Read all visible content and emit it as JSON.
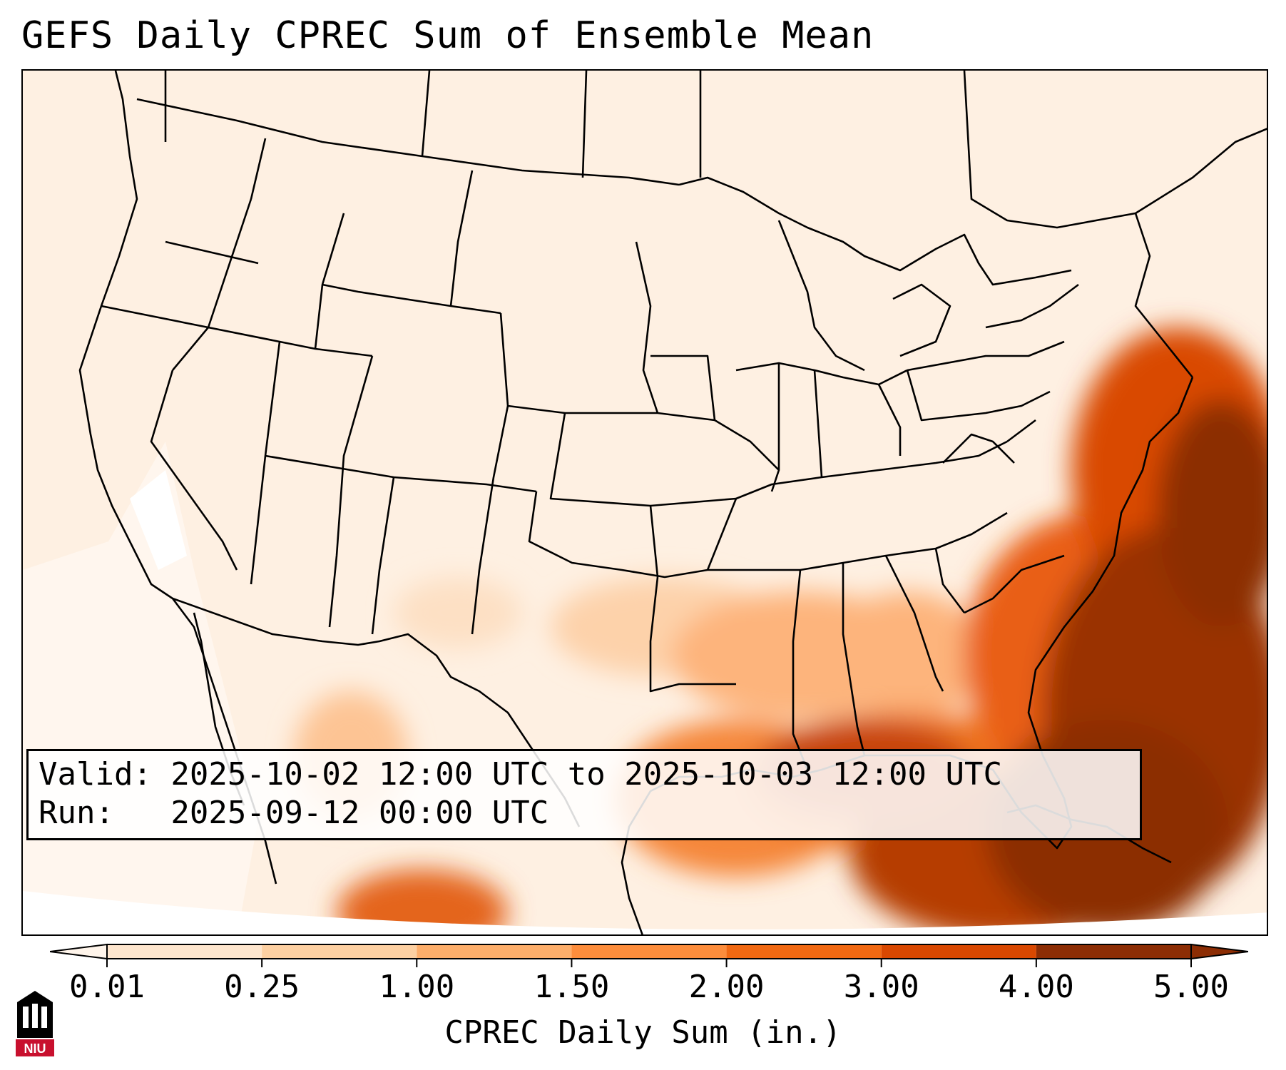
{
  "title": "GEFS Daily CPREC Sum of Ensemble Mean",
  "info": {
    "valid_line": "Valid: 2025-10-02 12:00 UTC to 2025-10-03 12:00 UTC",
    "run_line": "Run:   2025-09-12 00:00 UTC"
  },
  "colorbar": {
    "label": "CPREC Daily Sum (in.)",
    "ticks": [
      "0.01",
      "0.25",
      "1.00",
      "1.50",
      "2.00",
      "3.00",
      "4.00",
      "5.00"
    ],
    "colors": [
      "#fff5eb",
      "#fee6ce",
      "#fdd0a2",
      "#fdae6b",
      "#fd8d3c",
      "#f16913",
      "#d94801",
      "#8c2d04"
    ],
    "extend": "both"
  },
  "logo": {
    "text": "NIU",
    "color": "#c8102e"
  },
  "map": {
    "projection": "Lambert Conformal (CONUS)",
    "boundaries": [
      "US states",
      "Canada provinces",
      "Mexico",
      "Coastlines"
    ],
    "field": "convective precipitation daily sum, ensemble mean",
    "max_region": "Southeast US coast and western Atlantic"
  }
}
